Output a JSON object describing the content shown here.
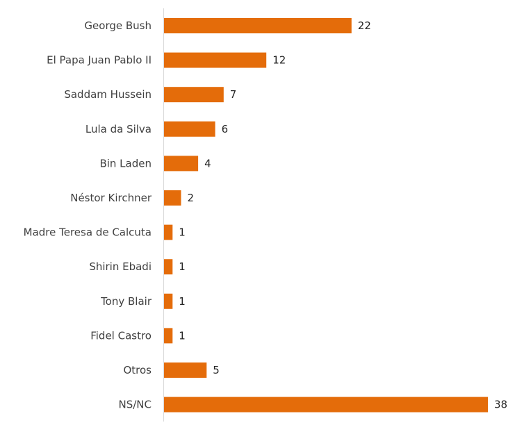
{
  "chart_data": {
    "type": "bar",
    "orientation": "horizontal",
    "categories": [
      "George Bush",
      "El Papa Juan Pablo II",
      "Saddam Hussein",
      "Lula da Silva",
      "Bin Laden",
      "Néstor Kirchner",
      "Madre Teresa de Calcuta",
      "Shirin Ebadi",
      "Tony Blair",
      "Fidel Castro",
      "Otros",
      "NS/NC"
    ],
    "values": [
      22,
      12,
      7,
      6,
      4,
      2,
      1,
      1,
      1,
      1,
      5,
      38
    ],
    "xlim": [
      0,
      38
    ],
    "bar_color": "#e46c0a",
    "grid": false,
    "legend": "none",
    "data_labels": true
  }
}
